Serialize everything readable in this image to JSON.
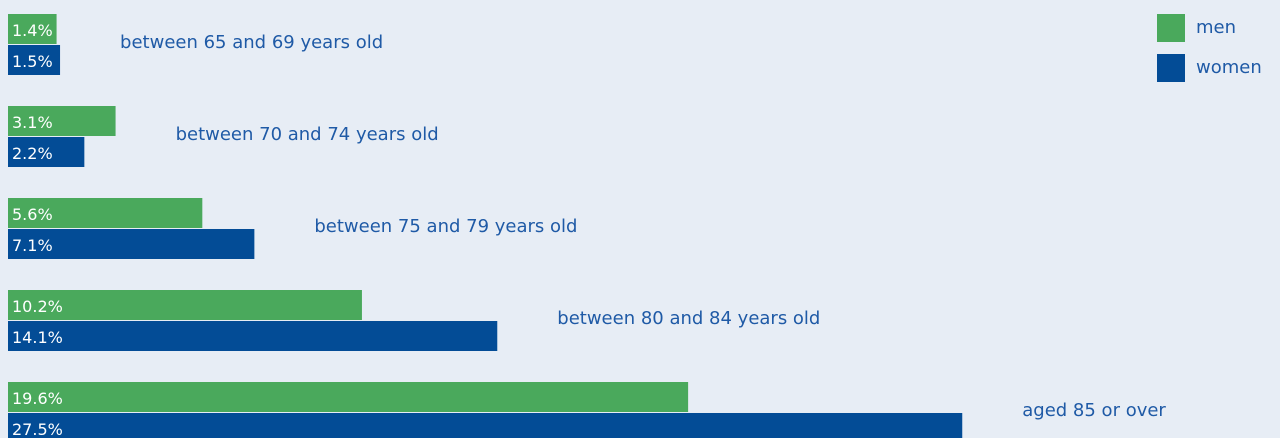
{
  "chart_data": {
    "type": "bar",
    "orientation": "horizontal",
    "categories": [
      "between 65 and 69 years old",
      "between 70 and 74 years old",
      "between 75 and 79 years old",
      "between 80 and 84 years old",
      "aged 85 or over"
    ],
    "series": [
      {
        "name": "men",
        "color": "#4aa95c",
        "values": [
          1.4,
          3.1,
          5.6,
          10.2,
          19.6
        ],
        "labels": [
          "1.4%",
          "3.1%",
          "5.6%",
          "10.2%",
          "19.6%"
        ]
      },
      {
        "name": "women",
        "color": "#034c96",
        "values": [
          1.5,
          2.2,
          7.1,
          14.1,
          27.5
        ],
        "labels": [
          "1.5%",
          "2.2%",
          "7.1%",
          "14.1%",
          "27.5%"
        ]
      }
    ],
    "legend": {
      "placement": "top-right"
    },
    "grid": false,
    "axes_visible": false
  }
}
